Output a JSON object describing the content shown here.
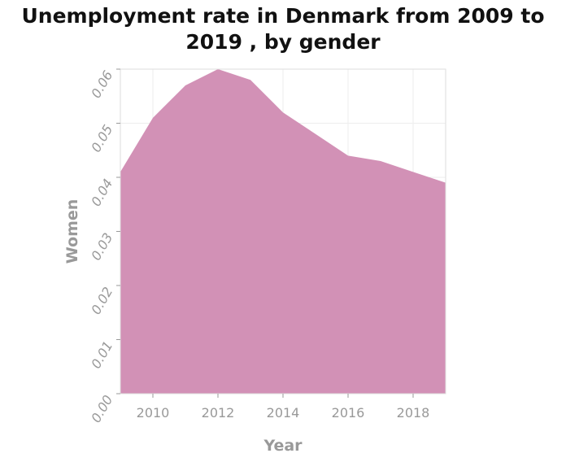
{
  "chart_data": {
    "type": "area",
    "title_lines": [
      "Unemployment rate in Denmark from 2009 to",
      "2019 , by gender"
    ],
    "xlabel": "Year",
    "ylabel": "Women",
    "x": [
      2009,
      2010,
      2011,
      2012,
      2013,
      2014,
      2015,
      2016,
      2017,
      2018,
      2019
    ],
    "series": [
      {
        "values": [
          0.041,
          0.051,
          0.057,
          0.06,
          0.058,
          0.052,
          0.048,
          0.044,
          0.043,
          0.041,
          0.039
        ]
      }
    ],
    "xlim": [
      2009,
      2019
    ],
    "ylim": [
      0,
      0.06
    ],
    "xticks": [
      "2010",
      "2012",
      "2014",
      "2016",
      "2018"
    ],
    "yticks": [
      "0.00",
      "0.01",
      "0.02",
      "0.03",
      "0.04",
      "0.05",
      "0.06"
    ],
    "grid": true,
    "fill_color": "#d291b6",
    "axis_color": "#999999"
  }
}
